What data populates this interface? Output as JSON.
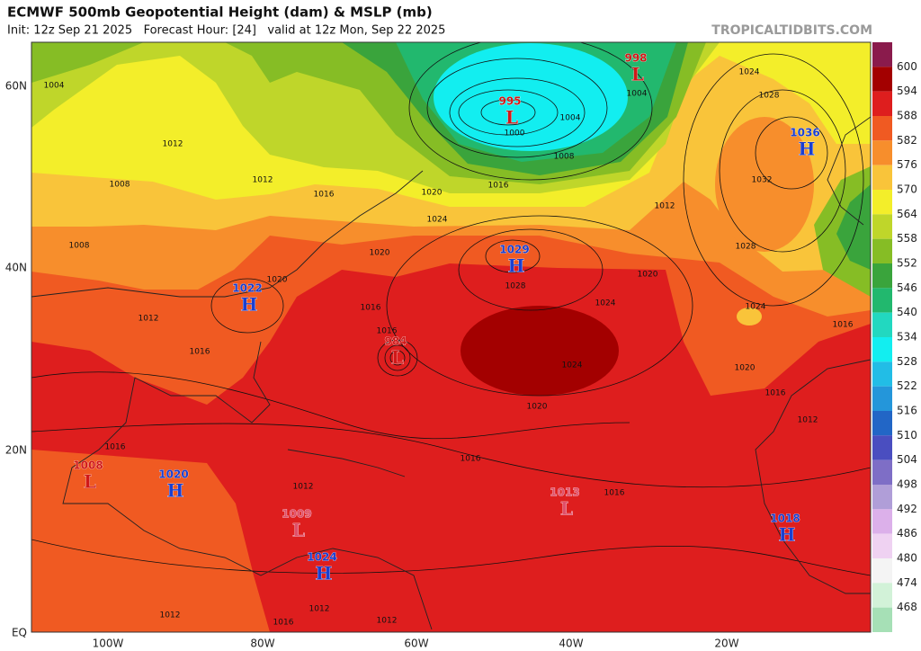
{
  "header": {
    "title": "ECMWF 500mb Geopotential Height (dam) & MSLP (mb)",
    "subtitle": "Init: 12z Sep 21 2025   Forecast Hour: [24]   valid at 12z Mon, Sep 22 2025",
    "source": "TROPICALTIDBITS.COM"
  },
  "colorbar": {
    "top_color": "#8a1b4c",
    "levels": [
      {
        "label": 600,
        "color": "#a30000"
      },
      {
        "label": 594,
        "color": "#de1e1e"
      },
      {
        "label": 588,
        "color": "#f05a22"
      },
      {
        "label": 582,
        "color": "#f78e2c"
      },
      {
        "label": 576,
        "color": "#f9c43a"
      },
      {
        "label": 570,
        "color": "#f3ee2a"
      },
      {
        "label": 564,
        "color": "#bfd62a"
      },
      {
        "label": 558,
        "color": "#86bd25"
      },
      {
        "label": 552,
        "color": "#3aa43c"
      },
      {
        "label": 546,
        "color": "#22b86e"
      },
      {
        "label": 540,
        "color": "#22d8c0"
      },
      {
        "label": 534,
        "color": "#12eef0"
      },
      {
        "label": 528,
        "color": "#22bde6"
      },
      {
        "label": 522,
        "color": "#2496da"
      },
      {
        "label": 516,
        "color": "#2266c6"
      },
      {
        "label": 510,
        "color": "#4a4ec0"
      },
      {
        "label": 504,
        "color": "#7e6ec6"
      },
      {
        "label": 498,
        "color": "#b09ed8"
      },
      {
        "label": 492,
        "color": "#dcb0ea"
      },
      {
        "label": 486,
        "color": "#efd2f2"
      },
      {
        "label": 480,
        "color": "#f4f4f4"
      },
      {
        "label": 474,
        "color": "#d2f2d8"
      },
      {
        "label": 468,
        "color": "#a6e0b6"
      }
    ]
  },
  "latitude_labels": [
    "60N",
    "40N",
    "20N",
    "EQ"
  ],
  "longitude_labels": [
    "100W",
    "80W",
    "60W",
    "40W",
    "20W"
  ],
  "pressure_centers": [
    {
      "symbol": "L",
      "value": "995"
    },
    {
      "symbol": "L",
      "value": "998"
    },
    {
      "symbol": "H",
      "value": "1036"
    },
    {
      "symbol": "H",
      "value": "1029"
    },
    {
      "symbol": "H",
      "value": "1022"
    },
    {
      "symbol": "L",
      "value": "984"
    },
    {
      "symbol": "H",
      "value": "1020"
    },
    {
      "symbol": "L",
      "value": "1008"
    },
    {
      "symbol": "L",
      "value": "1009"
    },
    {
      "symbol": "H",
      "value": "1024"
    },
    {
      "symbol": "L",
      "value": "1013"
    },
    {
      "symbol": "H",
      "value": "1018"
    }
  ],
  "isobar_labels": [
    "1004",
    "1012",
    "1008",
    "1012",
    "1016",
    "1008",
    "1020",
    "1024",
    "1016",
    "1008",
    "1004",
    "1000",
    "1004",
    "1024",
    "1028",
    "1032",
    "1012",
    "1028",
    "1020",
    "1024",
    "1024",
    "1020",
    "1016",
    "1012",
    "1016",
    "1020",
    "1016",
    "1016",
    "1020",
    "1012",
    "1016",
    "1028",
    "1024",
    "1020",
    "1016",
    "1016",
    "1012",
    "1012",
    "1012",
    "1016",
    "1012",
    "1016"
  ]
}
